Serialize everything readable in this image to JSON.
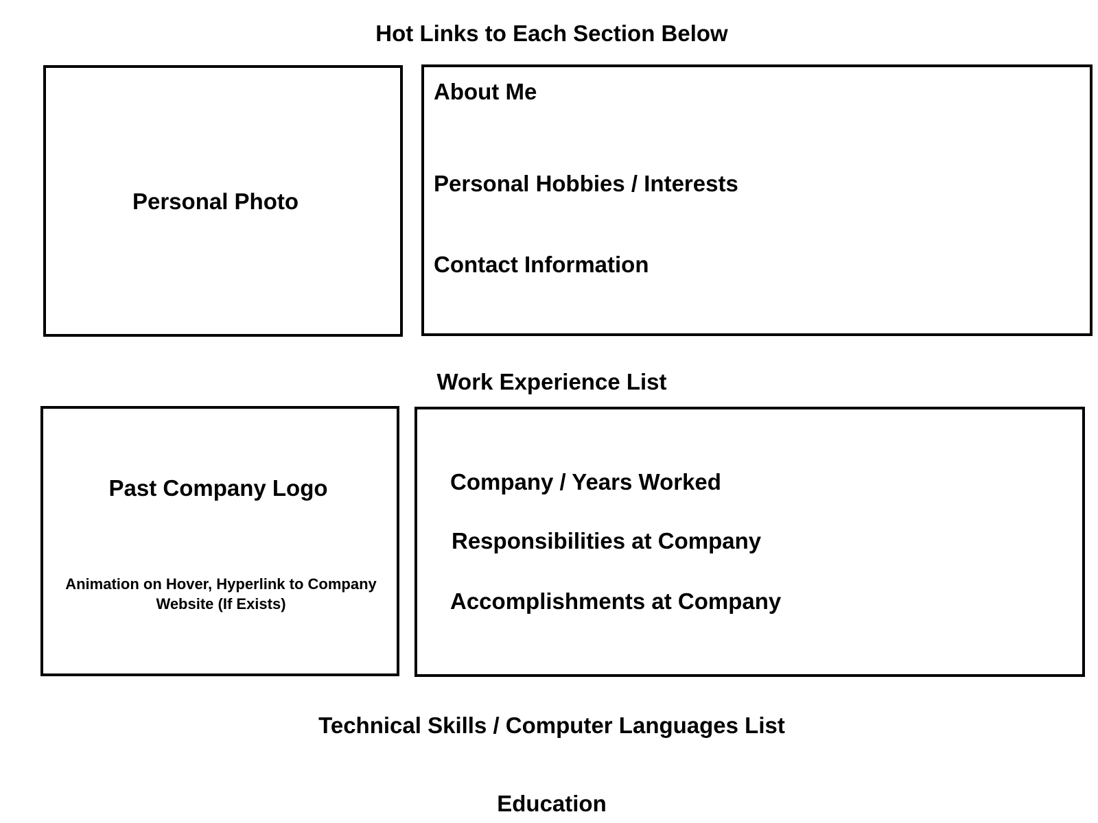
{
  "header": {
    "hot_links": "Hot Links to Each Section Below"
  },
  "top_section": {
    "photo_label": "Personal Photo",
    "about_me": "About Me",
    "hobbies": "Personal Hobbies / Interests",
    "contact": "Contact Information"
  },
  "work_section": {
    "title": "Work Experience List",
    "logo_label": "Past Company Logo",
    "logo_note": "Animation on Hover, Hyperlink to Company Website (If Exists)",
    "company_years": "Company / Years Worked",
    "responsibilities": "Responsibilities at Company",
    "accomplishments": "Accomplishments at Company"
  },
  "skills_section": {
    "title": "Technical Skills / Computer Languages List"
  },
  "education_section": {
    "title": "Education"
  },
  "colors": {
    "stroke": "#000000",
    "background": "#ffffff"
  }
}
